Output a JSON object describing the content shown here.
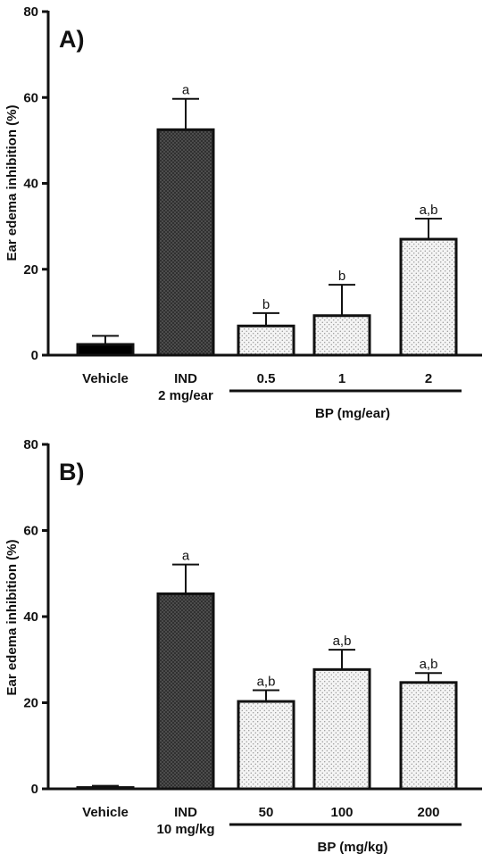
{
  "chart_data": [
    {
      "type": "bar",
      "panel_label": "A)",
      "ylabel": "Ear edema inhibition (%)",
      "ylim": [
        0,
        80
      ],
      "yticks": [
        0,
        20,
        40,
        60,
        80
      ],
      "categories": [
        "Vehicle",
        "IND",
        "0.5",
        "1",
        "2"
      ],
      "category_sublabels": [
        "",
        "2 mg/ear",
        "",
        "",
        ""
      ],
      "values": [
        2.5,
        52.5,
        6.8,
        9.2,
        27.0
      ],
      "errors": [
        2.0,
        7.2,
        3.0,
        7.2,
        4.8
      ],
      "significance": [
        "",
        "a",
        "b",
        "b",
        "a,b"
      ],
      "fills": [
        "solid",
        "crosshatch",
        "dots",
        "dots",
        "dots"
      ],
      "group": {
        "label": "BP (mg/ear)",
        "from": 2,
        "to": 4
      }
    },
    {
      "type": "bar",
      "panel_label": "B)",
      "ylabel": "Ear edema inhibition (%)",
      "ylim": [
        0,
        80
      ],
      "yticks": [
        0,
        20,
        40,
        60,
        80
      ],
      "categories": [
        "Vehicle",
        "IND",
        "50",
        "100",
        "200"
      ],
      "category_sublabels": [
        "",
        "10 mg/kg",
        "",
        "",
        ""
      ],
      "values": [
        0.3,
        45.3,
        20.3,
        27.7,
        24.7
      ],
      "errors": [
        0.4,
        6.8,
        2.6,
        4.6,
        2.2
      ],
      "significance": [
        "",
        "a",
        "a,b",
        "a,b",
        "a,b"
      ],
      "fills": [
        "solid",
        "crosshatch",
        "dots",
        "dots",
        "dots"
      ],
      "group": {
        "label": "BP (mg/kg)",
        "from": 2,
        "to": 4
      }
    }
  ]
}
